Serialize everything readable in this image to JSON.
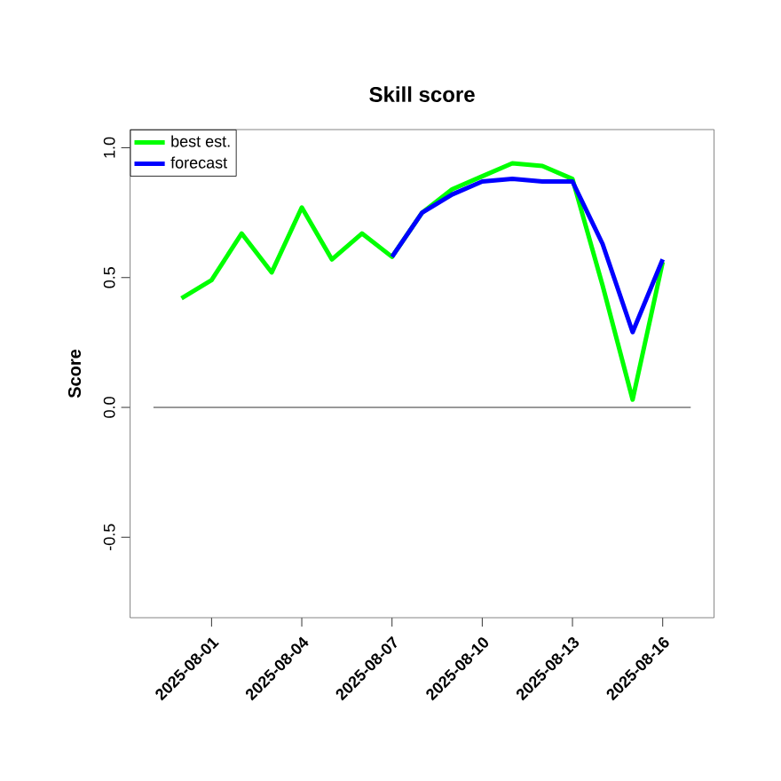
{
  "chart_data": {
    "type": "line",
    "title": "Skill score",
    "ylabel": "Score",
    "x": [
      "2025-07-31",
      "2025-08-01",
      "2025-08-02",
      "2025-08-03",
      "2025-08-04",
      "2025-08-05",
      "2025-08-06",
      "2025-08-07",
      "2025-08-08",
      "2025-08-09",
      "2025-08-10",
      "2025-08-11",
      "2025-08-12",
      "2025-08-13",
      "2025-08-14",
      "2025-08-15",
      "2025-08-16"
    ],
    "series": [
      {
        "name": "best est.",
        "color": "#00ff00",
        "values": [
          0.42,
          0.49,
          0.67,
          0.52,
          0.77,
          0.57,
          0.67,
          0.58,
          0.75,
          0.84,
          0.89,
          0.94,
          0.93,
          0.88,
          0.47,
          0.03,
          0.56
        ]
      },
      {
        "name": "forecast",
        "color": "#0000ff",
        "x": [
          "2025-08-07",
          "2025-08-08",
          "2025-08-09",
          "2025-08-10",
          "2025-08-11",
          "2025-08-12",
          "2025-08-13",
          "2025-08-14",
          "2025-08-15",
          "2025-08-16"
        ],
        "values": [
          0.58,
          0.75,
          0.82,
          0.87,
          0.88,
          0.87,
          0.87,
          0.63,
          0.29,
          0.57
        ]
      }
    ],
    "xlim": [
      "2025-07-29T07:00",
      "2025-08-17T17:00"
    ],
    "xticks": [
      "2025-08-01",
      "2025-08-04",
      "2025-08-07",
      "2025-08-10",
      "2025-08-13",
      "2025-08-16"
    ],
    "ylim": [
      -0.81,
      1.07
    ],
    "yticks": [
      -0.5,
      {
        "value": 0,
        "label": "0.0"
      },
      0.5,
      {
        "value": 1,
        "label": "1.0"
      }
    ],
    "ref_lines": [
      {
        "axis": "y",
        "value": 0,
        "color": "#000000"
      }
    ],
    "legend": "top left",
    "grid": false,
    "marker": "none",
    "line_style": "solid"
  }
}
